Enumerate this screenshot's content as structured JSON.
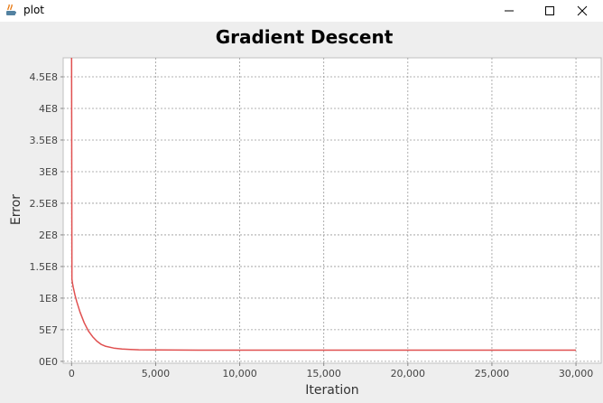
{
  "window": {
    "title": "plot",
    "icon": "java-app-icon",
    "controls": [
      "minimize-icon",
      "maximize-icon",
      "close-icon"
    ]
  },
  "chart_data": {
    "type": "line",
    "title": "Gradient Descent",
    "xlabel": "Iteration",
    "ylabel": "Error",
    "xlim": [
      -500,
      31500
    ],
    "ylim": [
      -3000000,
      480000000
    ],
    "xticks": [
      0,
      5000,
      10000,
      15000,
      20000,
      25000,
      30000
    ],
    "xtick_labels": [
      "0",
      "5,000",
      "10,000",
      "15,000",
      "20,000",
      "25,000",
      "30,000"
    ],
    "yticks": [
      0,
      50000000,
      100000000,
      150000000,
      200000000,
      250000000,
      300000000,
      350000000,
      400000000,
      450000000
    ],
    "ytick_labels": [
      "0E0",
      "5E7",
      "1E8",
      "1.5E8",
      "2E8",
      "2.5E8",
      "3E8",
      "3.5E8",
      "4E8",
      "4.5E8"
    ],
    "grid": true,
    "series": [
      {
        "color": "#e05050",
        "x": [
          0,
          20,
          50,
          100,
          200,
          300,
          500,
          750,
          1000,
          1250,
          1500,
          1750,
          2000,
          2500,
          3000,
          3500,
          4000,
          5000,
          7500,
          10000,
          15000,
          20000,
          25000,
          30000
        ],
        "y": [
          480000000,
          130000000,
          124000000,
          117000000,
          105000000,
          95000000,
          78000000,
          61000000,
          48000000,
          39000000,
          32000000,
          27000000,
          24000000,
          21000000,
          19500000,
          18800000,
          18300000,
          18000000,
          17800000,
          17700000,
          17700000,
          17700000,
          17700000,
          17700000
        ]
      }
    ]
  }
}
